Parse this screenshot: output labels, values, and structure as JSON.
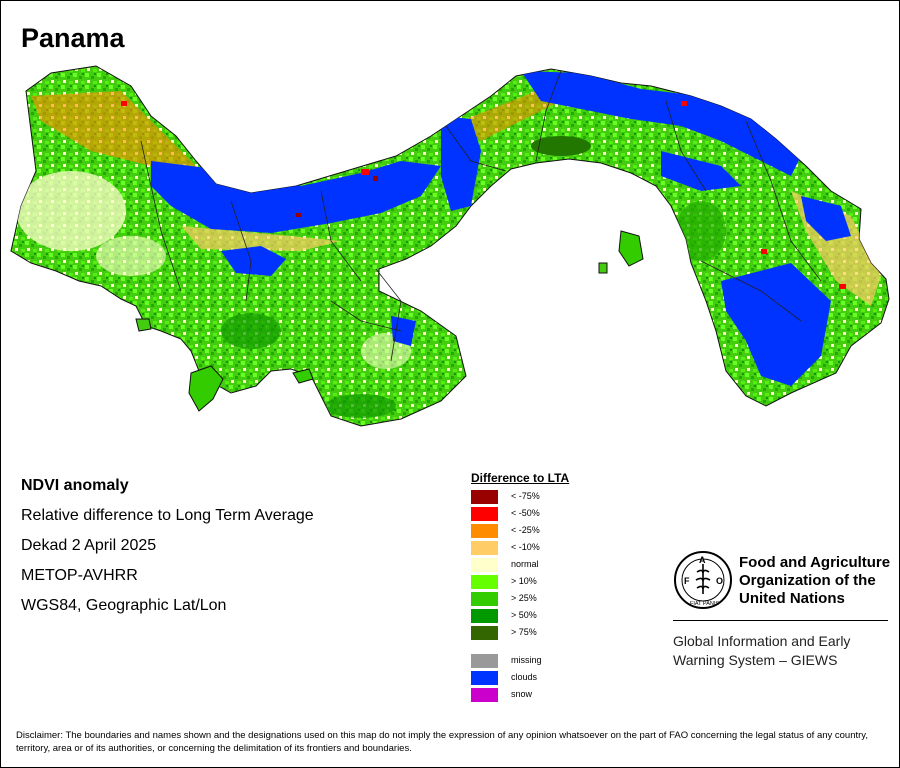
{
  "title": "Panama",
  "info": {
    "heading": "NDVI anomaly",
    "lines": [
      "Relative difference to Long Term Average",
      "Dekad 2 April 2025",
      "METOP-AVHRR",
      "WGS84, Geographic Lat/Lon"
    ]
  },
  "legend": {
    "title": "Difference to LTA",
    "items": [
      {
        "label": "< -75%",
        "color": "#990000"
      },
      {
        "label": "< -50%",
        "color": "#ff0000"
      },
      {
        "label": "< -25%",
        "color": "#ff8c00"
      },
      {
        "label": "< -10%",
        "color": "#ffcc66"
      },
      {
        "label": "normal",
        "color": "#ffffcc"
      },
      {
        "label": "> 10%",
        "color": "#66ff00"
      },
      {
        "label": "> 25%",
        "color": "#33cc00"
      },
      {
        "label": "> 50%",
        "color": "#009900"
      },
      {
        "label": "> 75%",
        "color": "#336600"
      }
    ],
    "extra_items": [
      {
        "label": "missing",
        "color": "#999999"
      },
      {
        "label": "clouds",
        "color": "#0033ff"
      },
      {
        "label": "snow",
        "color": "#cc00cc"
      }
    ]
  },
  "org": {
    "name_lines": [
      "Food and Agriculture",
      "Organization of the",
      "United Nations"
    ],
    "logo_letters": "FAO",
    "logo_motto": "FIAT PANIS",
    "system_lines": [
      "Global Information and Early",
      "Warning System – GIEWS"
    ]
  },
  "disclaimer": "Disclaimer: The boundaries and names shown and the designations used on this map do not imply the expression of any opinion whatsoever on the part of FAO concerning the legal status of any country, territory, area or of its authorities, or concerning the delimitation of its frontiers and boundaries."
}
